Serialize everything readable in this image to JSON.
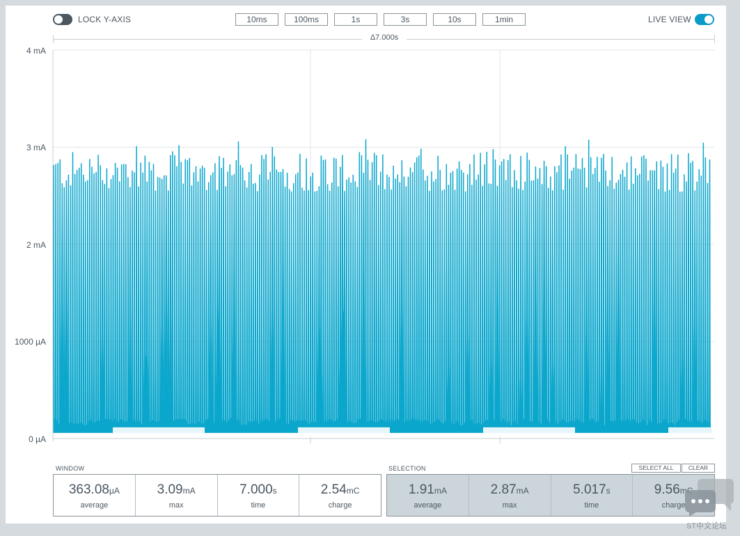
{
  "toolbar": {
    "lock_y_axis_label": "LOCK Y-AXIS",
    "live_view_label": "LIVE VIEW",
    "lock_y_axis_on": false,
    "live_view_on": true,
    "window_buttons": [
      "10ms",
      "100ms",
      "1s",
      "3s",
      "10s",
      "1min"
    ]
  },
  "delta_label": "Δ7.000s",
  "colors": {
    "signal": "#0aa6cc",
    "toggle_on": "#0a9ac8",
    "toggle_off": "#4a5660",
    "selection_bg": "#ccd5da"
  },
  "chart_data": {
    "type": "area",
    "y_ticks": [
      "4 mA",
      "3 mA",
      "2 mA",
      "1000 µA",
      "0 µA"
    ],
    "y_range_uA": [
      0,
      4000
    ],
    "x_range_s": [
      0,
      7.0
    ],
    "grid": true,
    "series": [
      {
        "baseline_uA": 60,
        "pulse_floor_uA": 130,
        "peak_typical_uA": 2750,
        "peak_max_uA": 3090,
        "shape": "dense periodic current pulses across the 7.000 s window"
      }
    ]
  },
  "window_stats": {
    "title": "WINDOW",
    "cells": [
      {
        "value": "363.08",
        "unit": "µA",
        "label": "average"
      },
      {
        "value": "3.09",
        "unit": "mA",
        "label": "max"
      },
      {
        "value": "7.000",
        "unit": "s",
        "label": "time"
      },
      {
        "value": "2.54",
        "unit": "mC",
        "label": "charge"
      }
    ]
  },
  "selection_stats": {
    "title": "SELECTION",
    "select_all_label": "SELECT ALL",
    "clear_label": "CLEAR",
    "cells": [
      {
        "value": "1.91",
        "unit": "mA",
        "label": "average"
      },
      {
        "value": "2.87",
        "unit": "mA",
        "label": "max"
      },
      {
        "value": "5.017",
        "unit": "s",
        "label": "time"
      },
      {
        "value": "9.56",
        "unit": "mC",
        "label": "charge"
      }
    ]
  },
  "watermark": "ST中文论坛"
}
